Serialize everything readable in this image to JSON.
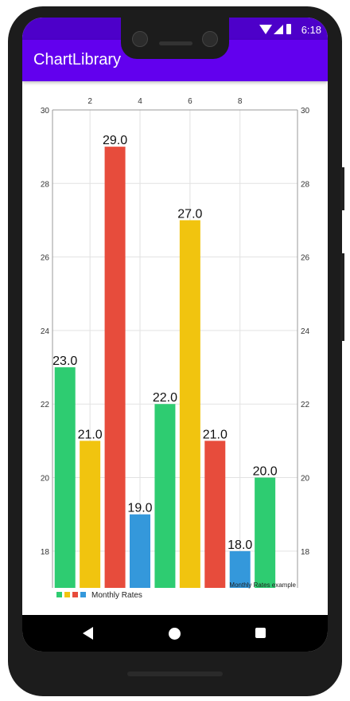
{
  "status_bar": {
    "time": "6:18"
  },
  "app_bar": {
    "title": "ChartLibrary"
  },
  "chart_data": {
    "type": "bar",
    "x": [
      1,
      2,
      3,
      4,
      5,
      6,
      7,
      8,
      9
    ],
    "values": [
      23,
      21,
      29,
      19,
      22,
      27,
      21,
      18,
      20
    ],
    "value_labels": [
      "23.0",
      "21.0",
      "29.0",
      "19.0",
      "22.0",
      "27.0",
      "21.0",
      "18.0",
      "20.0"
    ],
    "bar_colors": [
      "#2ecc71",
      "#f1c40f",
      "#e74c3c",
      "#3498db",
      "#2ecc71",
      "#f1c40f",
      "#e74c3c",
      "#3498db",
      "#2ecc71"
    ],
    "x_ticks": [
      "2",
      "4",
      "6",
      "8"
    ],
    "x_tick_values": [
      2,
      4,
      6,
      8
    ],
    "y_ticks": [
      "18",
      "20",
      "22",
      "24",
      "26",
      "28",
      "30"
    ],
    "y_tick_values": [
      18,
      20,
      22,
      24,
      26,
      28,
      30
    ],
    "xlim": [
      0.5,
      10.3
    ],
    "ylim": [
      17,
      30
    ],
    "grid": true,
    "x_axis_position": "top",
    "y_axes": "left-and-right",
    "legend": {
      "label": "Monthly Rates",
      "colors": [
        "#2ecc71",
        "#f1c40f",
        "#e74c3c",
        "#3498db"
      ],
      "position": "bottom-left"
    },
    "description": "Monthly Rates example"
  }
}
